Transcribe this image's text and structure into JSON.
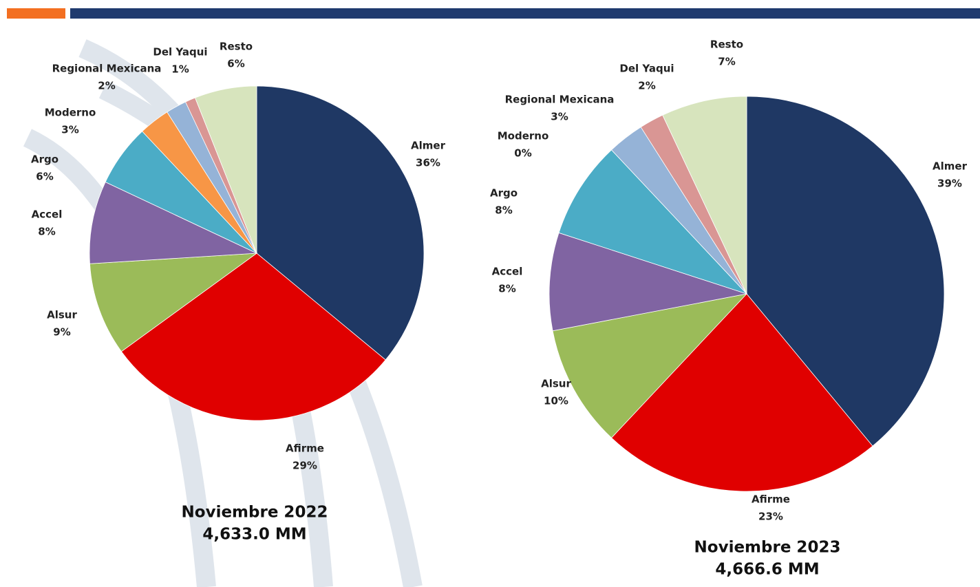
{
  "chart_data": [
    {
      "type": "pie",
      "title": "Noviembre 2022",
      "subtitle": "4,633.0 MM",
      "categories": [
        "Almer",
        "Afirme",
        "Alsur",
        "Accel",
        "Argo",
        "Moderno",
        "Regional Mexicana",
        "Del Yaqui",
        "Resto"
      ],
      "values": [
        36,
        29,
        9,
        8,
        6,
        3,
        2,
        1,
        6
      ],
      "value_labels": [
        "36%",
        "29%",
        "9%",
        "8%",
        "6%",
        "3%",
        "2%",
        "1%",
        "6%"
      ],
      "colors": [
        "#1f3864",
        "#e00000",
        "#9bbb59",
        "#8064a2",
        "#4bacc6",
        "#f79646",
        "#95b3d7",
        "#d99694",
        "#d7e4bd"
      ]
    },
    {
      "type": "pie",
      "title": "Noviembre 2023",
      "subtitle": "4,666.6 MM",
      "categories": [
        "Almer",
        "Afirme",
        "Alsur",
        "Accel",
        "Argo",
        "Moderno",
        "Regional Mexicana",
        "Del Yaqui",
        "Resto"
      ],
      "values": [
        39,
        23,
        10,
        8,
        8,
        0,
        3,
        2,
        7
      ],
      "value_labels": [
        "39%",
        "23%",
        "10%",
        "8%",
        "8%",
        "0%",
        "3%",
        "2%",
        "7%"
      ],
      "colors": [
        "#1f3864",
        "#e00000",
        "#9bbb59",
        "#8064a2",
        "#4bacc6",
        "#f79646",
        "#95b3d7",
        "#d99694",
        "#d7e4bd"
      ]
    }
  ]
}
